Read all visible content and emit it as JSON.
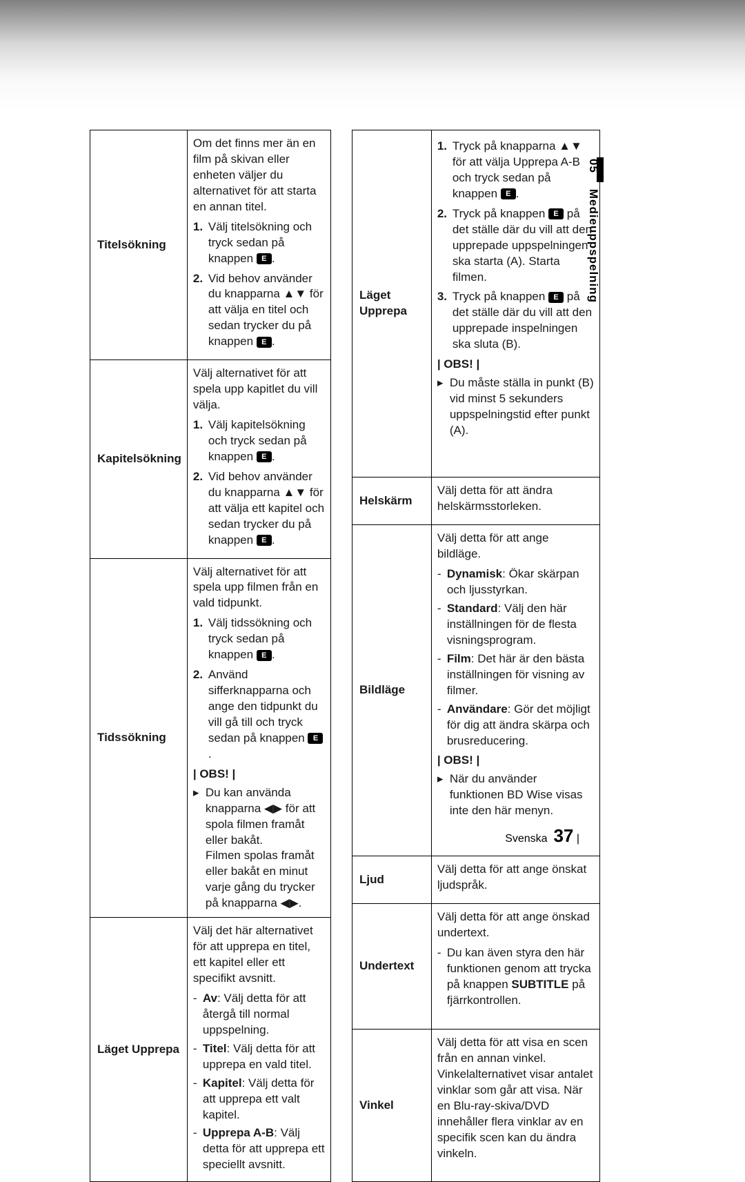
{
  "sidebar": {
    "section_num": "05",
    "section_title": "Medieuppspelning"
  },
  "footer": {
    "lang": "Svenska",
    "page": "37",
    "bar": "|"
  },
  "left": [
    {
      "label": "Titelsökning",
      "intro": "Om det finns mer än en film på skivan eller enheten väljer du alternativet för att starta en annan titel.",
      "steps": [
        "Välj titelsökning och tryck sedan på knappen ",
        "Vid behov använder du knapparna ▲▼ för att välja en titel och sedan trycker du på knappen "
      ]
    },
    {
      "label": "Kapitelsökning",
      "intro": "Välj alternativet för att spela upp kapitlet du vill välja.",
      "steps": [
        "Välj kapitelsökning och tryck sedan på knappen ",
        "Vid behov använder du knapparna ▲▼ för att välja ett kapitel och sedan trycker du på knappen "
      ]
    },
    {
      "label": "Tidssökning",
      "intro": "Välj alternativet för att spela upp filmen från en vald tidpunkt.",
      "steps": [
        "Välj tidssökning och tryck sedan på knappen ",
        "Använd sifferknapparna och ange den tidpunkt du vill gå till och tryck sedan på knappen "
      ],
      "obs": "| OBS! |",
      "note": "Du kan använda knapparna ◀▶ för att spola filmen framåt eller bakåt.\nFilmen spolas framåt eller bakåt en minut varje gång du trycker på knapparna ◀▶."
    },
    {
      "label": "Läget Upprepa",
      "intro": "Välj det här alternativet för att upprepa en titel, ett kapitel eller ett specifikt avsnitt.",
      "bullets": [
        {
          "k": "Av",
          "t": ": Välj detta för att återgå till normal uppspelning."
        },
        {
          "k": "Titel",
          "t": ": Välj detta för att upprepa en vald titel."
        },
        {
          "k": "Kapitel",
          "t": ": Välj detta för att upprepa ett valt kapitel."
        },
        {
          "k": "Upprepa A-B",
          "t": ": Välj detta för att upprepa ett speciellt avsnitt."
        }
      ]
    }
  ],
  "right": [
    {
      "label": "Läget Upprepa",
      "steps3": [
        {
          "pre": "Tryck på knapparna ▲▼ för att välja Upprepa A-B och tryck sedan på knappen ",
          "post": "."
        },
        {
          "pre": "Tryck på knappen ",
          "post": " på det ställe där du vill att den upprepade uppspelningen ska starta (A). Starta filmen."
        },
        {
          "pre": "Tryck på knappen ",
          "post": " på det ställe där du vill att den upprepade inspelningen ska sluta (B)."
        }
      ],
      "obs": "| OBS! |",
      "note": "Du måste ställa in punkt (B) vid minst 5 sekunders uppspelningstid efter punkt (A)."
    },
    {
      "label": "Helskärm",
      "plain": "Välj detta för att ändra helskärmsstorleken."
    },
    {
      "label": "Bildläge",
      "intro2": "Välj detta för att ange bildläge.",
      "bullets2": [
        {
          "k": "Dynamisk",
          "t": ": Ökar skärpan och ljusstyrkan."
        },
        {
          "k": "Standard",
          "t": ": Välj den här inställningen för de flesta visningsprogram."
        },
        {
          "k": "Film",
          "t": ": Det här är den bästa inställningen för visning av filmer."
        },
        {
          "k": "Användare",
          "t": ": Gör det möjligt för dig att ändra skärpa och brusreducering."
        }
      ],
      "obs": "| OBS! |",
      "note": "När du använder funktionen BD Wise visas inte den här menyn."
    },
    {
      "label": "Ljud",
      "plain": "Välj detta för att ange önskat ljudspråk."
    },
    {
      "label": "Undertext",
      "intro2": "Välj detta för att ange önskad undertext.",
      "bullets3": [
        "Du kan även styra den här funktionen genom att trycka på knappen SUBTITLE på fjärrkontrollen."
      ],
      "subtitle_label": "SUBTITLE"
    },
    {
      "label": "Vinkel",
      "plain": "Välj detta för att visa en scen från en annan vinkel. Vinkelalternativet visar antalet vinklar som går att visa. När en Blu-ray-skiva/DVD innehåller flera vinklar av en specifik scen kan du ändra vinkeln."
    }
  ]
}
